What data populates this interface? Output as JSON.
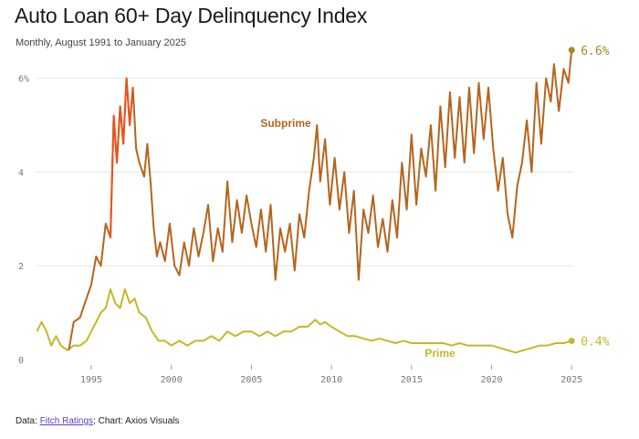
{
  "header": {
    "title": "Auto Loan 60+ Day Delinquency Index",
    "subtitle": "Monthly, August 1991 to January 2025"
  },
  "footer": {
    "data_prefix": "Data: ",
    "source_link": "Fitch Ratings",
    "chart_credit": "; Chart: Axios Visuals"
  },
  "colors": {
    "subprime": "#b5651d",
    "subprime_peak": "#e8541c",
    "prime": "#c4b82a",
    "end_marker": "#a08a2a",
    "grid": "#e6e6e6"
  },
  "chart_data": {
    "type": "line",
    "title": "Auto Loan 60+ Day Delinquency Index",
    "subtitle": "Monthly, August 1991 to January 2025",
    "xlim": [
      1991.58,
      2025.1
    ],
    "ylim": [
      0,
      6.5
    ],
    "y_ticks": [
      0,
      2,
      4,
      6
    ],
    "y_tick_labels": [
      "0",
      "2",
      "4",
      "6%"
    ],
    "x_ticks": [
      1995,
      2000,
      2005,
      2010,
      2015,
      2020,
      2025
    ],
    "x_tick_labels": [
      "1995",
      "2000",
      "2005",
      "2010",
      "2015",
      "2020",
      "2025"
    ],
    "grid": "horizontal",
    "series": [
      {
        "name": "Subprime",
        "end_label": "6.6%",
        "points": [
          [
            1993.6,
            0.2
          ],
          [
            1993.9,
            0.8
          ],
          [
            1994.3,
            0.9
          ],
          [
            1994.7,
            1.3
          ],
          [
            1995.0,
            1.6
          ],
          [
            1995.3,
            2.2
          ],
          [
            1995.6,
            2.0
          ],
          [
            1995.9,
            2.9
          ],
          [
            1996.2,
            2.6
          ],
          [
            1996.4,
            5.2
          ],
          [
            1996.6,
            4.2
          ],
          [
            1996.8,
            5.4
          ],
          [
            1997.0,
            4.6
          ],
          [
            1997.2,
            6.0
          ],
          [
            1997.4,
            5.0
          ],
          [
            1997.6,
            5.8
          ],
          [
            1997.8,
            4.5
          ],
          [
            1998.0,
            4.2
          ],
          [
            1998.3,
            3.9
          ],
          [
            1998.5,
            4.6
          ],
          [
            1998.7,
            3.8
          ],
          [
            1998.9,
            2.8
          ],
          [
            1999.1,
            2.2
          ],
          [
            1999.3,
            2.5
          ],
          [
            1999.6,
            2.1
          ],
          [
            1999.9,
            2.9
          ],
          [
            2000.2,
            2.0
          ],
          [
            2000.5,
            1.8
          ],
          [
            2000.8,
            2.5
          ],
          [
            2001.1,
            2.0
          ],
          [
            2001.4,
            2.8
          ],
          [
            2001.7,
            2.2
          ],
          [
            2002.0,
            2.7
          ],
          [
            2002.3,
            3.3
          ],
          [
            2002.6,
            2.1
          ],
          [
            2002.9,
            2.8
          ],
          [
            2003.2,
            2.3
          ],
          [
            2003.5,
            3.8
          ],
          [
            2003.8,
            2.5
          ],
          [
            2004.1,
            3.4
          ],
          [
            2004.4,
            2.7
          ],
          [
            2004.7,
            3.5
          ],
          [
            2005.0,
            2.9
          ],
          [
            2005.3,
            2.4
          ],
          [
            2005.6,
            3.2
          ],
          [
            2005.9,
            2.3
          ],
          [
            2006.2,
            3.3
          ],
          [
            2006.5,
            1.7
          ],
          [
            2006.8,
            2.8
          ],
          [
            2007.1,
            2.3
          ],
          [
            2007.4,
            2.9
          ],
          [
            2007.7,
            1.9
          ],
          [
            2008.0,
            3.1
          ],
          [
            2008.3,
            2.6
          ],
          [
            2008.6,
            3.6
          ],
          [
            2008.9,
            4.3
          ],
          [
            2009.1,
            5.0
          ],
          [
            2009.3,
            3.8
          ],
          [
            2009.6,
            4.7
          ],
          [
            2009.9,
            3.3
          ],
          [
            2010.2,
            4.3
          ],
          [
            2010.5,
            3.2
          ],
          [
            2010.8,
            4.0
          ],
          [
            2011.1,
            2.7
          ],
          [
            2011.4,
            3.6
          ],
          [
            2011.7,
            1.7
          ],
          [
            2012.0,
            3.2
          ],
          [
            2012.3,
            2.7
          ],
          [
            2012.6,
            3.5
          ],
          [
            2012.9,
            2.4
          ],
          [
            2013.2,
            3.0
          ],
          [
            2013.5,
            2.3
          ],
          [
            2013.8,
            3.4
          ],
          [
            2014.1,
            2.6
          ],
          [
            2014.4,
            4.2
          ],
          [
            2014.7,
            3.2
          ],
          [
            2015.0,
            4.8
          ],
          [
            2015.3,
            3.3
          ],
          [
            2015.6,
            4.5
          ],
          [
            2015.9,
            3.9
          ],
          [
            2016.2,
            5.0
          ],
          [
            2016.5,
            3.6
          ],
          [
            2016.8,
            5.4
          ],
          [
            2017.1,
            4.1
          ],
          [
            2017.4,
            5.7
          ],
          [
            2017.7,
            4.3
          ],
          [
            2018.0,
            5.6
          ],
          [
            2018.3,
            4.2
          ],
          [
            2018.6,
            5.8
          ],
          [
            2018.9,
            4.4
          ],
          [
            2019.2,
            5.9
          ],
          [
            2019.5,
            4.7
          ],
          [
            2019.8,
            5.8
          ],
          [
            2020.1,
            4.5
          ],
          [
            2020.4,
            3.6
          ],
          [
            2020.7,
            4.3
          ],
          [
            2021.0,
            3.1
          ],
          [
            2021.3,
            2.6
          ],
          [
            2021.6,
            3.7
          ],
          [
            2021.9,
            4.2
          ],
          [
            2022.2,
            5.1
          ],
          [
            2022.5,
            4.0
          ],
          [
            2022.8,
            5.9
          ],
          [
            2023.1,
            4.6
          ],
          [
            2023.4,
            6.0
          ],
          [
            2023.7,
            5.5
          ],
          [
            2023.9,
            6.3
          ],
          [
            2024.2,
            5.3
          ],
          [
            2024.5,
            6.2
          ],
          [
            2024.8,
            5.9
          ],
          [
            2025.0,
            6.6
          ]
        ]
      },
      {
        "name": "Prime",
        "end_label": "0.4%",
        "points": [
          [
            1991.6,
            0.6
          ],
          [
            1991.9,
            0.8
          ],
          [
            1992.2,
            0.6
          ],
          [
            1992.5,
            0.3
          ],
          [
            1992.8,
            0.5
          ],
          [
            1993.1,
            0.3
          ],
          [
            1993.5,
            0.2
          ],
          [
            1993.9,
            0.3
          ],
          [
            1994.3,
            0.3
          ],
          [
            1994.7,
            0.4
          ],
          [
            1995.0,
            0.6
          ],
          [
            1995.3,
            0.8
          ],
          [
            1995.6,
            1.0
          ],
          [
            1995.9,
            1.1
          ],
          [
            1996.2,
            1.5
          ],
          [
            1996.5,
            1.2
          ],
          [
            1996.8,
            1.1
          ],
          [
            1997.1,
            1.5
          ],
          [
            1997.4,
            1.2
          ],
          [
            1997.7,
            1.3
          ],
          [
            1998.0,
            1.0
          ],
          [
            1998.4,
            0.9
          ],
          [
            1998.8,
            0.6
          ],
          [
            1999.2,
            0.4
          ],
          [
            1999.6,
            0.4
          ],
          [
            2000.0,
            0.3
          ],
          [
            2000.5,
            0.4
          ],
          [
            2001.0,
            0.3
          ],
          [
            2001.5,
            0.4
          ],
          [
            2002.0,
            0.4
          ],
          [
            2002.5,
            0.5
          ],
          [
            2003.0,
            0.4
          ],
          [
            2003.5,
            0.6
          ],
          [
            2004.0,
            0.5
          ],
          [
            2004.5,
            0.6
          ],
          [
            2005.0,
            0.6
          ],
          [
            2005.5,
            0.5
          ],
          [
            2006.0,
            0.6
          ],
          [
            2006.5,
            0.5
          ],
          [
            2007.0,
            0.6
          ],
          [
            2007.5,
            0.6
          ],
          [
            2008.0,
            0.7
          ],
          [
            2008.5,
            0.7
          ],
          [
            2009.0,
            0.85
          ],
          [
            2009.3,
            0.75
          ],
          [
            2009.6,
            0.8
          ],
          [
            2010.0,
            0.7
          ],
          [
            2010.5,
            0.6
          ],
          [
            2011.0,
            0.5
          ],
          [
            2011.5,
            0.5
          ],
          [
            2012.0,
            0.45
          ],
          [
            2012.5,
            0.4
          ],
          [
            2013.0,
            0.45
          ],
          [
            2013.5,
            0.4
          ],
          [
            2014.0,
            0.35
          ],
          [
            2014.5,
            0.4
          ],
          [
            2015.0,
            0.35
          ],
          [
            2015.5,
            0.35
          ],
          [
            2016.0,
            0.35
          ],
          [
            2016.5,
            0.35
          ],
          [
            2017.0,
            0.35
          ],
          [
            2017.5,
            0.3
          ],
          [
            2018.0,
            0.35
          ],
          [
            2018.5,
            0.3
          ],
          [
            2019.0,
            0.3
          ],
          [
            2019.5,
            0.3
          ],
          [
            2020.0,
            0.3
          ],
          [
            2020.5,
            0.25
          ],
          [
            2021.0,
            0.2
          ],
          [
            2021.5,
            0.15
          ],
          [
            2022.0,
            0.2
          ],
          [
            2022.5,
            0.25
          ],
          [
            2023.0,
            0.3
          ],
          [
            2023.5,
            0.3
          ],
          [
            2024.0,
            0.35
          ],
          [
            2024.5,
            0.35
          ],
          [
            2025.0,
            0.4
          ]
        ]
      }
    ]
  }
}
